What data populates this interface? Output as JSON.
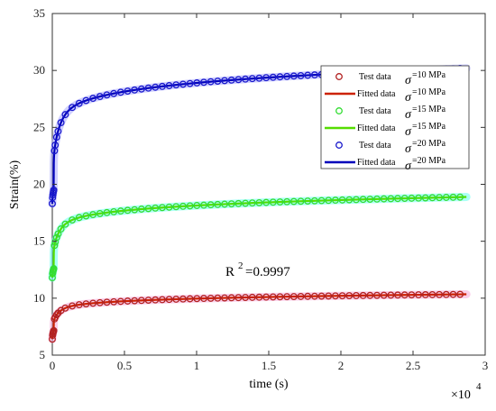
{
  "chart_data": {
    "type": "scatter",
    "title": "",
    "xlabel": "time (s)",
    "ylabel": "Strain(%)",
    "x_multiplier_label": "×10",
    "x_multiplier_exp": "4",
    "xlim": [
      0,
      3
    ],
    "ylim": [
      5,
      35
    ],
    "xticks": [
      "0",
      "0.5",
      "1",
      "1.5",
      "2",
      "2.5",
      "3"
    ],
    "yticks": [
      "5",
      "10",
      "15",
      "20",
      "25",
      "30",
      "35"
    ],
    "grid": false,
    "legend_position": "right",
    "annotation": {
      "prefix": "R",
      "exp": "2",
      "value": "=0.9997"
    },
    "series": [
      {
        "test_label": "Test data",
        "fit_label": "Fitted data",
        "sigma_symbol": "σ",
        "sigma_value": "=10 MPa",
        "color": "#b22222",
        "fit_color": "#cc2200",
        "halo_color": "#f5a8d8",
        "y0": 6.4,
        "a": 0.75,
        "b": 3.2,
        "c": 0.04,
        "n": 0.12
      },
      {
        "test_label": "Test data",
        "fit_label": "Fitted data",
        "sigma_symbol": "σ",
        "sigma_value": "=15 MPa",
        "color": "#33dd33",
        "fit_color": "#55dd00",
        "halo_color": "#66ffee",
        "y0": 11.8,
        "a": 0.8,
        "b": 6.3,
        "c": 0.04,
        "n": 0.12
      },
      {
        "test_label": "Test data",
        "fit_label": "Fitted data",
        "sigma_symbol": "σ",
        "sigma_value": "=20 MPa",
        "color": "#1a1acc",
        "fit_color": "#0000bb",
        "halo_color": "#aaaaff",
        "y0": 18.3,
        "a": 1.2,
        "b": 10.7,
        "c": 0.04,
        "n": 0.12
      }
    ]
  }
}
